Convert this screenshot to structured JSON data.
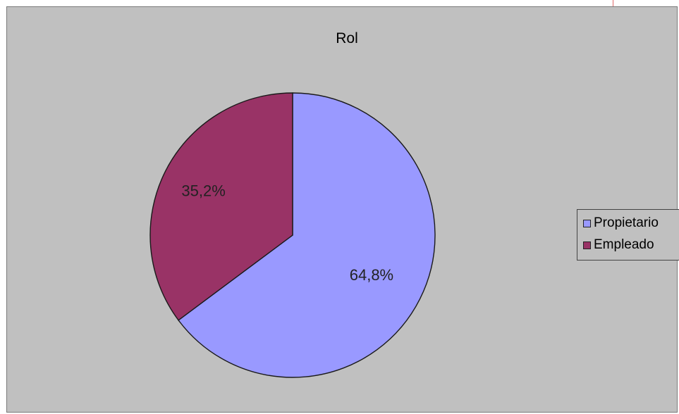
{
  "chart_data": {
    "type": "pie",
    "title": "Rol",
    "categories": [
      "Propietario",
      "Empleado"
    ],
    "values": [
      64.8,
      35.2
    ],
    "labels": [
      "64,8%",
      "35,2%"
    ],
    "colors": [
      "#9999ff",
      "#993366"
    ],
    "legend_position": "right"
  }
}
